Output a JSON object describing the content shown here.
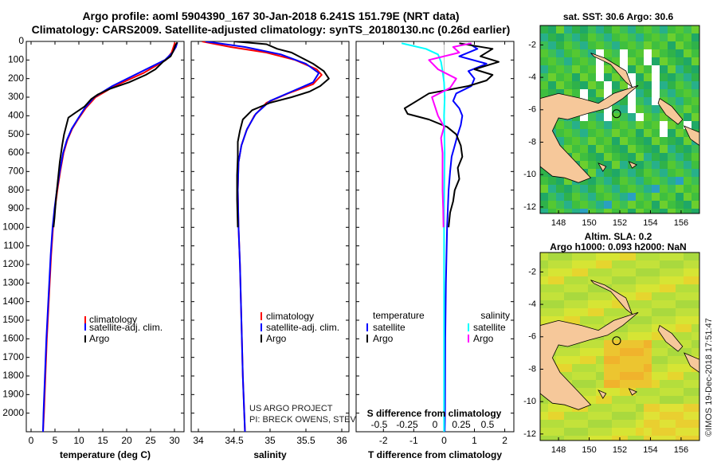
{
  "header": {
    "line1": "Argo profile: aoml 5904390_167 30-Jan-2018 6.241S 151.79E (NRT data)",
    "line2": "Climatology: CARS2009. Satellite-adjusted climatology: synTS_20180130.nc (0.26d earlier)"
  },
  "colors": {
    "climatology": "#ff0000",
    "satellite": "#0000ff",
    "argo": "#000000",
    "satellite_salinity": "#00ffff",
    "argo_salinity": "#ff00ff",
    "land": "#f6c89a"
  },
  "chart_data": [
    {
      "id": "temperature",
      "type": "line",
      "xlabel": "temperature (deg C)",
      "ylabel": "",
      "xlim": [
        -1,
        32
      ],
      "ylim": [
        2100,
        0
      ],
      "xticks": [
        0,
        5,
        10,
        15,
        20,
        25,
        30
      ],
      "yticks": [
        0,
        100,
        200,
        300,
        400,
        500,
        600,
        700,
        800,
        900,
        1000,
        1100,
        1200,
        1300,
        1400,
        1500,
        1600,
        1700,
        1800,
        1900,
        2000
      ],
      "legend": [
        "climatology",
        "satellite-adj. clim.",
        "Argo"
      ],
      "series": [
        {
          "name": "climatology",
          "color": "#ff0000",
          "points": [
            [
              30.1,
              5
            ],
            [
              29.8,
              30
            ],
            [
              29.4,
              60
            ],
            [
              28.2,
              100
            ],
            [
              23.5,
              170
            ],
            [
              17.5,
              240
            ],
            [
              13.5,
              300
            ],
            [
              11.4,
              360
            ],
            [
              9.8,
              420
            ],
            [
              8.6,
              470
            ],
            [
              7.6,
              530
            ],
            [
              6.8,
              600
            ],
            [
              6.1,
              700
            ],
            [
              5.5,
              800
            ],
            [
              5.0,
              900
            ],
            [
              4.6,
              1000
            ],
            [
              4.2,
              1150
            ],
            [
              3.9,
              1300
            ],
            [
              3.6,
              1450
            ],
            [
              3.3,
              1600
            ],
            [
              3.0,
              1800
            ],
            [
              2.7,
              2000
            ],
            [
              2.5,
              2100
            ]
          ]
        },
        {
          "name": "satellite-adj. clim.",
          "color": "#0000ff",
          "points": [
            [
              30.6,
              5
            ],
            [
              30.3,
              30
            ],
            [
              29.6,
              60
            ],
            [
              28.0,
              100
            ],
            [
              22.5,
              170
            ],
            [
              17.0,
              240
            ],
            [
              13.2,
              300
            ],
            [
              11.2,
              360
            ],
            [
              9.7,
              420
            ],
            [
              8.5,
              470
            ],
            [
              7.5,
              530
            ],
            [
              6.7,
              600
            ],
            [
              6.0,
              700
            ],
            [
              5.4,
              800
            ],
            [
              4.9,
              900
            ],
            [
              4.5,
              1000
            ],
            [
              4.1,
              1150
            ],
            [
              3.8,
              1300
            ],
            [
              3.5,
              1450
            ],
            [
              3.2,
              1600
            ],
            [
              2.9,
              1800
            ],
            [
              2.6,
              2000
            ],
            [
              2.5,
              2100
            ]
          ]
        },
        {
          "name": "Argo",
          "color": "#000000",
          "points": [
            [
              30.6,
              5
            ],
            [
              30.2,
              20
            ],
            [
              29.8,
              50
            ],
            [
              29.2,
              80
            ],
            [
              27.6,
              110
            ],
            [
              26.0,
              150
            ],
            [
              24.0,
              180
            ],
            [
              20.5,
              220
            ],
            [
              16.5,
              255
            ],
            [
              14.0,
              285
            ],
            [
              12.6,
              310
            ],
            [
              11.2,
              350
            ],
            [
              9.2,
              385
            ],
            [
              7.8,
              410
            ],
            [
              7.4,
              450
            ],
            [
              6.9,
              500
            ],
            [
              6.5,
              560
            ],
            [
              6.0,
              650
            ],
            [
              5.6,
              750
            ],
            [
              5.2,
              850
            ],
            [
              4.9,
              950
            ],
            [
              4.7,
              1000
            ]
          ]
        }
      ]
    },
    {
      "id": "salinity",
      "type": "line",
      "xlabel": "salinity",
      "xlim": [
        33.9,
        36.1
      ],
      "ylim": [
        2100,
        0
      ],
      "xticks": [
        34,
        34.5,
        35,
        35.5,
        36
      ],
      "xticklabels": [
        "34",
        "34.5",
        "35",
        "35.5",
        "36"
      ],
      "legend": [
        "climatology",
        "satellite-adj. clim.",
        "Argo"
      ],
      "series": [
        {
          "name": "climatology",
          "color": "#ff0000",
          "points": [
            [
              34.05,
              0
            ],
            [
              34.45,
              30
            ],
            [
              34.95,
              60
            ],
            [
              35.35,
              100
            ],
            [
              35.65,
              150
            ],
            [
              35.72,
              180
            ],
            [
              35.6,
              230
            ],
            [
              35.25,
              280
            ],
            [
              34.95,
              330
            ],
            [
              34.78,
              400
            ],
            [
              34.67,
              480
            ],
            [
              34.6,
              560
            ],
            [
              34.56,
              650
            ],
            [
              34.55,
              800
            ],
            [
              34.56,
              1000
            ],
            [
              34.58,
              1200
            ],
            [
              34.6,
              1500
            ],
            [
              34.62,
              1800
            ],
            [
              34.64,
              2000
            ],
            [
              34.65,
              2100
            ]
          ]
        },
        {
          "name": "satellite-adj. clim.",
          "color": "#0000ff",
          "points": [
            [
              34.1,
              0
            ],
            [
              34.65,
              30
            ],
            [
              35.15,
              70
            ],
            [
              35.5,
              120
            ],
            [
              35.68,
              170
            ],
            [
              35.6,
              220
            ],
            [
              35.3,
              270
            ],
            [
              35.0,
              320
            ],
            [
              34.8,
              390
            ],
            [
              34.68,
              470
            ],
            [
              34.6,
              560
            ],
            [
              34.56,
              650
            ],
            [
              34.55,
              800
            ],
            [
              34.56,
              1000
            ],
            [
              34.58,
              1200
            ],
            [
              34.6,
              1500
            ],
            [
              34.62,
              1800
            ],
            [
              34.64,
              2000
            ],
            [
              34.65,
              2100
            ]
          ]
        },
        {
          "name": "Argo",
          "color": "#000000",
          "points": [
            [
              34.5,
              0
            ],
            [
              34.95,
              15
            ],
            [
              35.1,
              40
            ],
            [
              35.3,
              60
            ],
            [
              35.45,
              90
            ],
            [
              35.6,
              120
            ],
            [
              35.75,
              160
            ],
            [
              35.82,
              200
            ],
            [
              35.7,
              240
            ],
            [
              35.55,
              270
            ],
            [
              35.3,
              300
            ],
            [
              35.0,
              330
            ],
            [
              34.75,
              370
            ],
            [
              34.62,
              420
            ],
            [
              34.58,
              480
            ],
            [
              34.55,
              540
            ],
            [
              34.55,
              620
            ],
            [
              34.54,
              720
            ],
            [
              34.54,
              850
            ],
            [
              34.55,
              1000
            ]
          ]
        }
      ]
    },
    {
      "id": "difference",
      "type": "line",
      "xlabel": "T difference from climatology",
      "xlim": [
        -2.9,
        2.3
      ],
      "ylim": [
        2100,
        0
      ],
      "xticks": [
        -2,
        -1,
        0,
        1,
        2
      ],
      "top_axis_label": "S difference from climatology",
      "top_ticks": [
        "-0.5",
        "-0.25",
        "0",
        "0.25",
        "0.5"
      ],
      "legend_left_title": "temperature",
      "legend_right_title": "salinity",
      "legend": [
        "satellite",
        "Argo",
        "satellite",
        "Argo"
      ],
      "series": [
        {
          "name": "temperature satellite",
          "color": "#0000ff",
          "points": [
            [
              0.8,
              10
            ],
            [
              1.1,
              40
            ],
            [
              0.5,
              80
            ],
            [
              1.4,
              120
            ],
            [
              0.8,
              160
            ],
            [
              1.0,
              200
            ],
            [
              0.9,
              240
            ],
            [
              0.4,
              280
            ],
            [
              0.3,
              320
            ],
            [
              0.5,
              360
            ],
            [
              0.6,
              400
            ],
            [
              0.55,
              450
            ],
            [
              0.45,
              500
            ],
            [
              0.35,
              560
            ],
            [
              0.25,
              620
            ],
            [
              0.2,
              700
            ],
            [
              0.15,
              800
            ],
            [
              0.1,
              1000
            ],
            [
              0.06,
              1300
            ],
            [
              0.04,
              1600
            ],
            [
              0.03,
              2000
            ],
            [
              0.02,
              2100
            ]
          ]
        },
        {
          "name": "temperature Argo",
          "color": "#000000",
          "points": [
            [
              0.5,
              10
            ],
            [
              1.6,
              40
            ],
            [
              1.2,
              80
            ],
            [
              1.8,
              110
            ],
            [
              1.0,
              150
            ],
            [
              1.6,
              180
            ],
            [
              1.4,
              210
            ],
            [
              0.8,
              240
            ],
            [
              -0.5,
              280
            ],
            [
              -0.9,
              320
            ],
            [
              -1.3,
              360
            ],
            [
              -1.2,
              390
            ],
            [
              -0.5,
              420
            ],
            [
              0.1,
              460
            ],
            [
              0.4,
              500
            ],
            [
              0.55,
              560
            ],
            [
              0.6,
              620
            ],
            [
              0.45,
              680
            ],
            [
              0.5,
              740
            ],
            [
              0.35,
              800
            ],
            [
              0.3,
              860
            ],
            [
              0.2,
              920
            ],
            [
              0.15,
              1000
            ]
          ]
        },
        {
          "name": "salinity satellite",
          "color": "#00ffff",
          "points": [
            [
              -1.4,
              10
            ],
            [
              -0.6,
              40
            ],
            [
              -0.2,
              70
            ],
            [
              -0.1,
              110
            ],
            [
              -0.05,
              160
            ],
            [
              0.0,
              220
            ],
            [
              0.02,
              300
            ],
            [
              0.0,
              400
            ],
            [
              0.02,
              600
            ],
            [
              0.0,
              900
            ],
            [
              0.0,
              1300
            ],
            [
              0.0,
              1700
            ],
            [
              0.0,
              2000
            ],
            [
              0.0,
              2100
            ]
          ]
        },
        {
          "name": "salinity Argo",
          "color": "#ff00ff",
          "points": [
            [
              0.9,
              10
            ],
            [
              0.3,
              30
            ],
            [
              0.5,
              60
            ],
            [
              -0.5,
              100
            ],
            [
              -0.2,
              150
            ],
            [
              0.4,
              200
            ],
            [
              0.2,
              250
            ],
            [
              -0.4,
              300
            ],
            [
              -0.3,
              350
            ],
            [
              -0.2,
              400
            ],
            [
              0.0,
              460
            ],
            [
              -0.1,
              520
            ],
            [
              -0.05,
              600
            ],
            [
              -0.05,
              700
            ],
            [
              -0.05,
              800
            ],
            [
              -0.03,
              900
            ],
            [
              -0.02,
              1000
            ]
          ]
        }
      ]
    },
    {
      "id": "sst_map",
      "type": "heatmap",
      "title": "sat. SST: 30.6 Argo: 30.6",
      "xlim": [
        146.8,
        157.2
      ],
      "ylim": [
        -12.4,
        -0.8
      ],
      "xticks": [
        148,
        150,
        152,
        154,
        156
      ],
      "yticks": [
        -2,
        -4,
        -6,
        -8,
        -10,
        -12
      ],
      "argo_position": [
        151.79,
        -6.241
      ]
    },
    {
      "id": "sla_map",
      "type": "heatmap",
      "title": "Altim. SLA: 0.2",
      "subtitle": "Argo h1000: 0.093 h2000: NaN",
      "xlim": [
        146.8,
        157.2
      ],
      "ylim": [
        -12.4,
        -0.8
      ],
      "xticks": [
        148,
        150,
        152,
        154,
        156
      ],
      "yticks": [
        -2,
        -4,
        -6,
        -8,
        -10,
        -12
      ],
      "argo_position": [
        151.79,
        -6.241
      ]
    }
  ],
  "credits": {
    "line1": "US ARGO PROJECT",
    "line2": "PI: BRECK OWENS, STEVE JAYNE, P. ROBBINS",
    "stamp": "©IMOS 19-Dec-2018 17:51:47"
  }
}
